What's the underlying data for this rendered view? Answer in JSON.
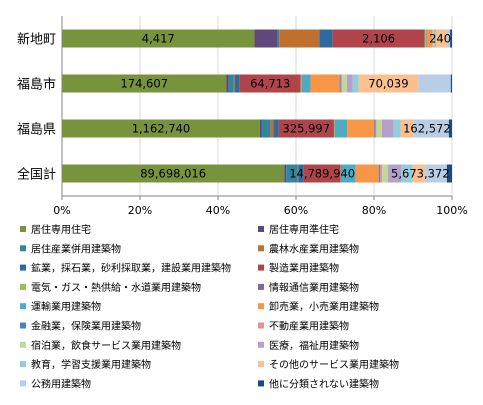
{
  "chart_data": {
    "type": "bar",
    "orientation": "horizontal",
    "stacked": "percent",
    "xlim": [
      0,
      100
    ],
    "x_ticks": [
      "0%",
      "20%",
      "40%",
      "60%",
      "80%",
      "100%"
    ],
    "grid": true,
    "legend_position": "bottom",
    "categories": [
      "新地町",
      "福島市",
      "福島県",
      "全国計"
    ],
    "series": [
      {
        "name": "居住専用住宅",
        "color": "#77933c",
        "values": [
          50.5,
          42.3,
          50.8,
          57.0
        ]
      },
      {
        "name": "居住専用準住宅",
        "color": "#60497a",
        "values": [
          6.0,
          0.6,
          0.4,
          0.5
        ]
      },
      {
        "name": "居住産業併用建築物",
        "color": "#31859c",
        "values": [
          0.5,
          1.3,
          2.3,
          2.9
        ]
      },
      {
        "name": "農林水産業用建築物",
        "color": "#c0702e",
        "values": [
          10.5,
          0.3,
          0.8,
          0.2
        ]
      },
      {
        "name": "鉱業，採石業，砂利採取業，建設業用建築物",
        "color": "#2e6a9c",
        "values": [
          3.5,
          1.2,
          1.3,
          1.4
        ]
      },
      {
        "name": "製造業用建築物",
        "color": "#b0444b",
        "values": [
          24.1,
          15.7,
          14.2,
          9.4
        ]
      },
      {
        "name": "電気・ガス・熱供給・水道業用建築物",
        "color": "#9bbb59",
        "values": [
          0.3,
          0.3,
          0.3,
          0.2
        ]
      },
      {
        "name": "情報通信業用建築物",
        "color": "#8064a2",
        "values": [
          0.0,
          0.2,
          0.1,
          0.2
        ]
      },
      {
        "name": "運輸業用建築物",
        "color": "#4bacc6",
        "values": [
          0.3,
          2.0,
          3.0,
          3.5
        ]
      },
      {
        "name": "卸売業，小売業用建築物",
        "color": "#f79646",
        "values": [
          1.5,
          7.5,
          7.0,
          6.0
        ]
      },
      {
        "name": "金融業，保険業用建築物",
        "color": "#4f81bd",
        "values": [
          0.0,
          0.3,
          0.3,
          0.3
        ]
      },
      {
        "name": "不動産業用建築物",
        "color": "#da9694",
        "values": [
          0.0,
          0.3,
          0.2,
          0.5
        ]
      },
      {
        "name": "宿泊業，飲食サービス業用建築物",
        "color": "#c3d69b",
        "values": [
          0.5,
          1.3,
          1.4,
          1.5
        ]
      },
      {
        "name": "医療，福祉用建築物",
        "color": "#b3a2c7",
        "values": [
          0.3,
          1.5,
          3.0,
          3.5
        ]
      },
      {
        "name": "教育，学習支援業用建築物",
        "color": "#93cddd",
        "values": [
          0.2,
          1.5,
          1.8,
          2.8
        ]
      },
      {
        "name": "その他のサービス業用建築物",
        "color": "#fac090",
        "values": [
          2.8,
          15.3,
          3.4,
          3.2
        ]
      },
      {
        "name": "公務用建築物",
        "color": "#b9cde5",
        "values": [
          0.8,
          8.4,
          9.0,
          5.6
        ]
      },
      {
        "name": "他に分類されない建築物",
        "color": "#1f497d",
        "values": [
          0.5,
          0.3,
          0.8,
          1.3
        ]
      }
    ],
    "data_labels": [
      {
        "category": 0,
        "series": 0,
        "text": "4,417"
      },
      {
        "category": 0,
        "series": 5,
        "text": "2,106"
      },
      {
        "category": 0,
        "series": 15,
        "text": "240"
      },
      {
        "category": 1,
        "series": 0,
        "text": "174,607"
      },
      {
        "category": 1,
        "series": 5,
        "text": "64,713"
      },
      {
        "category": 1,
        "series": 15,
        "text": "70,039"
      },
      {
        "category": 2,
        "series": 0,
        "text": "1,162,740"
      },
      {
        "category": 2,
        "series": 5,
        "text": "325,997"
      },
      {
        "category": 2,
        "series": 16,
        "text": "162,572"
      },
      {
        "category": 3,
        "series": 0,
        "text": "89,698,016"
      },
      {
        "category": 3,
        "series": 5,
        "text": "14,789,940"
      },
      {
        "category": 3,
        "series": 16,
        "text": "5,673,372"
      }
    ]
  }
}
